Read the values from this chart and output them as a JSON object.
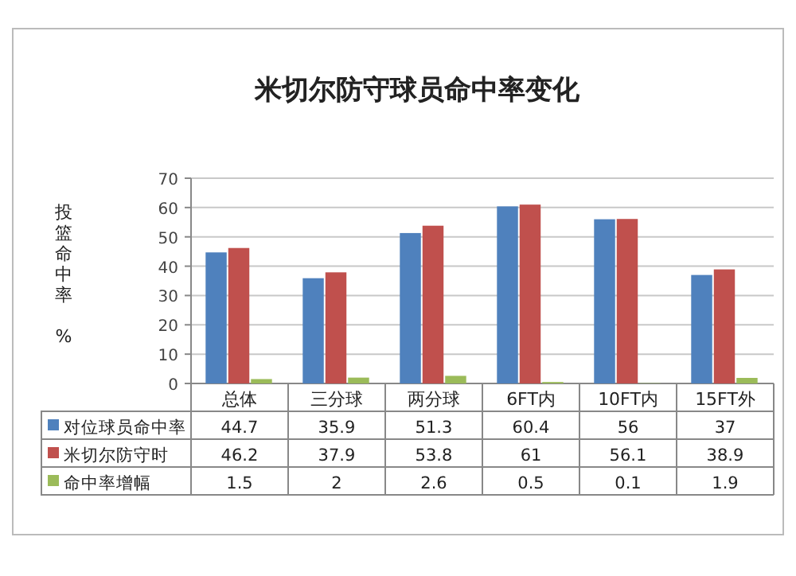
{
  "chart_data": {
    "type": "bar",
    "title": "米切尔防守球员命中率变化",
    "ylabel": "投篮命中率 %",
    "categories": [
      "总体",
      "三分球",
      "两分球",
      "6FT内",
      "10FT内",
      "15FT外"
    ],
    "series": [
      {
        "name": "对位球员命中率",
        "color": "#4f81bd",
        "values": [
          44.7,
          35.9,
          51.3,
          60.4,
          56,
          37
        ]
      },
      {
        "name": "米切尔防守时",
        "color": "#c0504d",
        "values": [
          46.2,
          37.9,
          53.8,
          61,
          56.1,
          38.9
        ]
      },
      {
        "name": "命中率增幅",
        "color": "#9bbb59",
        "values": [
          1.5,
          2,
          2.6,
          0.5,
          0.1,
          1.9
        ]
      }
    ],
    "ylim": [
      0,
      70
    ],
    "yticks": [
      0,
      10,
      20,
      30,
      40,
      50,
      60,
      70
    ],
    "grid": "y",
    "data_labels": true,
    "legend": "bottom"
  }
}
